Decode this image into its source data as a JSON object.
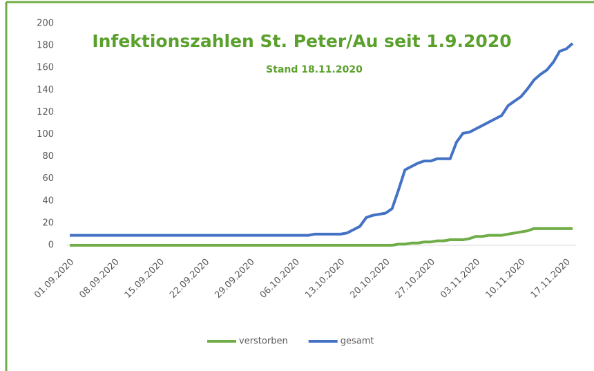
{
  "chart_data": {
    "type": "line",
    "title": "Infektionszahlen St. Peter/Au seit 1.9.2020",
    "subtitle": "Stand 18.11.2020",
    "categories": [
      "01.09.2020",
      null,
      null,
      null,
      null,
      null,
      null,
      "08.09.2020",
      null,
      null,
      null,
      null,
      null,
      null,
      "15.09.2020",
      null,
      null,
      null,
      null,
      null,
      null,
      "22.09.2020",
      null,
      null,
      null,
      null,
      null,
      null,
      "29.09.2020",
      null,
      null,
      null,
      null,
      null,
      null,
      "06.10.2020",
      null,
      null,
      null,
      null,
      null,
      null,
      "13.10.2020",
      null,
      null,
      null,
      null,
      null,
      null,
      "20.10.2020",
      null,
      null,
      null,
      null,
      null,
      null,
      "27.10.2020",
      null,
      null,
      null,
      null,
      null,
      null,
      "03.11.2020",
      null,
      null,
      null,
      null,
      null,
      null,
      "10.11.2020",
      null,
      null,
      null,
      null,
      null,
      null,
      "17.11.2020",
      null
    ],
    "series": [
      {
        "name": "verstorben",
        "color": "#70ad47",
        "values": [
          0,
          0,
          0,
          0,
          0,
          0,
          0,
          0,
          0,
          0,
          0,
          0,
          0,
          0,
          0,
          0,
          0,
          0,
          0,
          0,
          0,
          0,
          0,
          0,
          0,
          0,
          0,
          0,
          0,
          0,
          0,
          0,
          0,
          0,
          0,
          0,
          0,
          0,
          0,
          0,
          0,
          0,
          0,
          0,
          0,
          0,
          0,
          0,
          0,
          0,
          0,
          1,
          1,
          2,
          2,
          3,
          3,
          4,
          4,
          5,
          5,
          5,
          6,
          8,
          8,
          9,
          9,
          9,
          10,
          11,
          12,
          13,
          15,
          15,
          15,
          15,
          15,
          15,
          15
        ]
      },
      {
        "name": "gesamt",
        "color": "#4472c4",
        "values": [
          9,
          9,
          9,
          9,
          9,
          9,
          9,
          9,
          9,
          9,
          9,
          9,
          9,
          9,
          9,
          9,
          9,
          9,
          9,
          9,
          9,
          9,
          9,
          9,
          9,
          9,
          9,
          9,
          9,
          9,
          9,
          9,
          9,
          9,
          9,
          9,
          9,
          9,
          10,
          10,
          10,
          10,
          10,
          11,
          14,
          17,
          25,
          27,
          28,
          29,
          33,
          50,
          68,
          71,
          74,
          76,
          76,
          78,
          78,
          78,
          93,
          101,
          102,
          105,
          108,
          111,
          114,
          117,
          126,
          130,
          134,
          141,
          149,
          154,
          158,
          165,
          175,
          177,
          182
        ]
      }
    ],
    "ylim": [
      0,
      200
    ],
    "yticks": [
      0,
      20,
      40,
      60,
      80,
      100,
      120,
      140,
      160,
      180,
      200
    ],
    "grid": false,
    "legend": "bottom",
    "title_color": "#5aa02c"
  }
}
